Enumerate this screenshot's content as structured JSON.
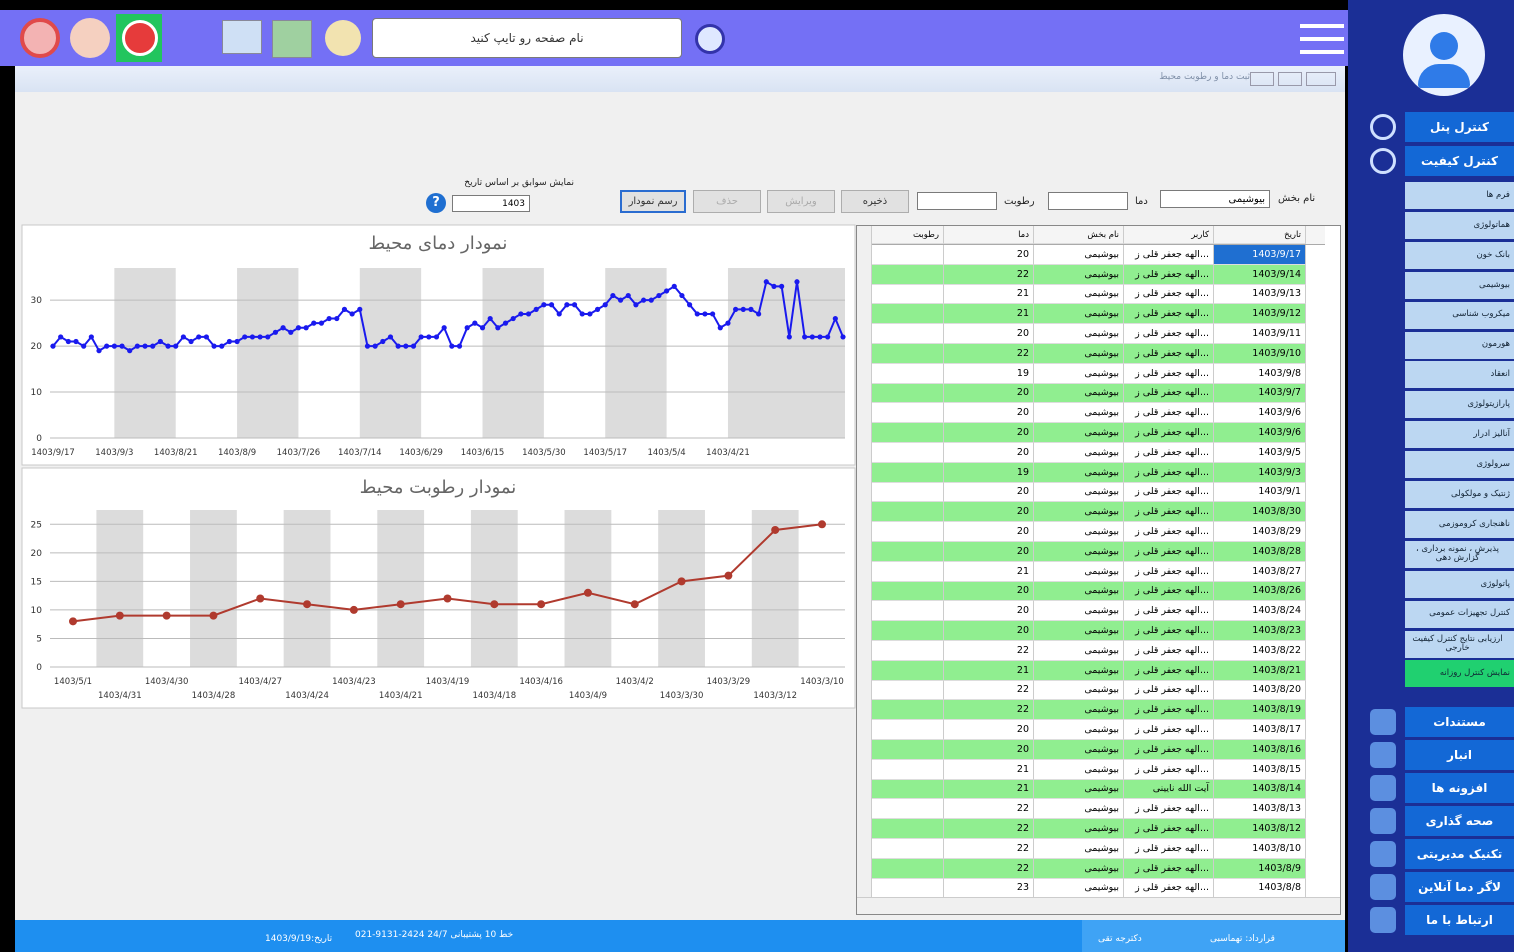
{
  "toolbar": {
    "search_placeholder": "نام صفحه رو تایپ کنید"
  },
  "window": {
    "title": "ثبت دما و رطوبت محیط"
  },
  "form": {
    "section_label": "نام بخش",
    "section_value": "بیوشیمی",
    "temp_label": "دما",
    "humidity_label": "رطوبت",
    "buttons": [
      "ذخیره",
      "ویرایش",
      "حذف",
      "رسم نمودار"
    ],
    "history_label": "نمایش سوابق بر اساس تاریخ",
    "year_value": "1403",
    "help_icon": "?"
  },
  "chart_data": [
    {
      "type": "line",
      "title": "نمودار دمای محیط",
      "color": "#1a1aee",
      "ylim": [
        0,
        37
      ],
      "yticks": [
        0,
        10,
        20,
        30
      ],
      "grid": true,
      "categories": [
        "1403/9/17",
        null,
        null,
        null,
        null,
        null,
        null,
        null,
        "1403/9/3",
        null,
        null,
        null,
        null,
        null,
        null,
        null,
        "1403/8/21",
        null,
        null,
        null,
        null,
        null,
        null,
        null,
        "1403/8/9",
        null,
        null,
        null,
        null,
        null,
        null,
        null,
        "1403/7/26",
        null,
        null,
        null,
        null,
        null,
        null,
        null,
        "1403/7/14",
        null,
        null,
        null,
        null,
        null,
        null,
        null,
        "1403/6/29",
        null,
        null,
        null,
        null,
        null,
        null,
        null,
        "1403/6/15",
        null,
        null,
        null,
        null,
        null,
        null,
        null,
        "1403/5/30",
        null,
        null,
        null,
        null,
        null,
        null,
        null,
        "1403/5/17",
        null,
        null,
        null,
        null,
        null,
        null,
        null,
        "1403/5/4",
        null,
        null,
        null,
        null,
        null,
        null,
        null,
        "1403/4/21",
        null,
        null,
        null,
        null,
        null,
        null,
        null,
        null,
        null,
        null,
        null,
        null,
        null,
        null,
        null
      ],
      "values": [
        20,
        22,
        21,
        21,
        20,
        22,
        19,
        20,
        20,
        20,
        19,
        20,
        20,
        20,
        21,
        20,
        20,
        22,
        21,
        22,
        22,
        20,
        20,
        21,
        21,
        22,
        22,
        22,
        22,
        23,
        24,
        23,
        24,
        24,
        25,
        25,
        26,
        26,
        28,
        27,
        28,
        20,
        20,
        21,
        22,
        20,
        20,
        20,
        22,
        22,
        22,
        24,
        20,
        20,
        24,
        25,
        24,
        26,
        24,
        25,
        26,
        27,
        27,
        28,
        29,
        29,
        27,
        29,
        29,
        27,
        27,
        28,
        29,
        31,
        30,
        31,
        29,
        30,
        30,
        31,
        32,
        33,
        31,
        29,
        27,
        27,
        27,
        24,
        25,
        28,
        28,
        28,
        27,
        34,
        33,
        33,
        22,
        34,
        22,
        22,
        22,
        22,
        26,
        22
      ]
    },
    {
      "type": "line",
      "title": "نمودار رطوبت محیط",
      "color": "#b03a2e",
      "ylim": [
        0,
        27.5
      ],
      "yticks": [
        0,
        5,
        10,
        15,
        20,
        25
      ],
      "grid": true,
      "categories": [
        "1403/5/1",
        "1403/4/31",
        "1403/4/30",
        "1403/4/28",
        "1403/4/27",
        "1403/4/24",
        "1403/4/23",
        "1403/4/21",
        "1403/4/19",
        "1403/4/18",
        "1403/4/16",
        "1403/4/9",
        "1403/4/2",
        "1403/3/30",
        "1403/3/29",
        "1403/3/12",
        "1403/3/10"
      ],
      "values": [
        8,
        9,
        9,
        9,
        12,
        11,
        10,
        11,
        12,
        11,
        11,
        13,
        11,
        15,
        16,
        24,
        25
      ]
    }
  ],
  "table": {
    "columns": [
      "تاریخ",
      "کاربر",
      "نام بخش",
      "دما",
      "رطوبت"
    ],
    "rows": [
      [
        "1403/9/17",
        "الهه جعفر قلی ز...",
        "بیوشیمی",
        20
      ],
      [
        "1403/9/14",
        "الهه جعفر قلی ز...",
        "بیوشیمی",
        22
      ],
      [
        "1403/9/13",
        "الهه جعفر قلی ز...",
        "بیوشیمی",
        21
      ],
      [
        "1403/9/12",
        "الهه جعفر قلی ز...",
        "بیوشیمی",
        21
      ],
      [
        "1403/9/11",
        "الهه جعفر قلی ز...",
        "بیوشیمی",
        20
      ],
      [
        "1403/9/10",
        "الهه جعفر قلی ز...",
        "بیوشیمی",
        22
      ],
      [
        "1403/9/8",
        "الهه جعفر قلی ز...",
        "بیوشیمی",
        19
      ],
      [
        "1403/9/7",
        "الهه جعفر قلی ز...",
        "بیوشیمی",
        20
      ],
      [
        "1403/9/6",
        "الهه جعفر قلی ز...",
        "بیوشیمی",
        20
      ],
      [
        "1403/9/6",
        "الهه جعفر قلی ز...",
        "بیوشیمی",
        20
      ],
      [
        "1403/9/5",
        "الهه جعفر قلی ز...",
        "بیوشیمی",
        20
      ],
      [
        "1403/9/3",
        "الهه جعفر قلی ز...",
        "بیوشیمی",
        19
      ],
      [
        "1403/9/1",
        "الهه جعفر قلی ز...",
        "بیوشیمی",
        20
      ],
      [
        "1403/8/30",
        "الهه جعفر قلی ز...",
        "بیوشیمی",
        20
      ],
      [
        "1403/8/29",
        "الهه جعفر قلی ز...",
        "بیوشیمی",
        20
      ],
      [
        "1403/8/28",
        "الهه جعفر قلی ز...",
        "بیوشیمی",
        20
      ],
      [
        "1403/8/27",
        "الهه جعفر قلی ز...",
        "بیوشیمی",
        21
      ],
      [
        "1403/8/26",
        "الهه جعفر قلی ز...",
        "بیوشیمی",
        20
      ],
      [
        "1403/8/24",
        "الهه جعفر قلی ز...",
        "بیوشیمی",
        20
      ],
      [
        "1403/8/23",
        "الهه جعفر قلی ز...",
        "بیوشیمی",
        20
      ],
      [
        "1403/8/22",
        "الهه جعفر قلی ز...",
        "بیوشیمی",
        22
      ],
      [
        "1403/8/21",
        "الهه جعفر قلی ز...",
        "بیوشیمی",
        21
      ],
      [
        "1403/8/20",
        "الهه جعفر قلی ز...",
        "بیوشیمی",
        22
      ],
      [
        "1403/8/19",
        "الهه جعفر قلی ز...",
        "بیوشیمی",
        22
      ],
      [
        "1403/8/17",
        "الهه جعفر قلی ز...",
        "بیوشیمی",
        20
      ],
      [
        "1403/8/16",
        "الهه جعفر قلی ز...",
        "بیوشیمی",
        20
      ],
      [
        "1403/8/15",
        "الهه جعفر قلی ز...",
        "بیوشیمی",
        21
      ],
      [
        "1403/8/14",
        "آیت الله نایینی",
        "بیوشیمی",
        21
      ],
      [
        "1403/8/13",
        "الهه جعفر قلی ز...",
        "بیوشیمی",
        22
      ],
      [
        "1403/8/12",
        "الهه جعفر قلی ز...",
        "بیوشیمی",
        22
      ],
      [
        "1403/8/10",
        "الهه جعفر قلی ز...",
        "بیوشیمی",
        22
      ],
      [
        "1403/8/9",
        "الهه جعفر قلی ز...",
        "بیوشیمی",
        22
      ],
      [
        "1403/8/8",
        "الهه جعفر قلی ز...",
        "بیوشیمی",
        23
      ]
    ]
  },
  "sidebar": {
    "top": [
      "کنترل پنل",
      "کنترل کیفیت"
    ],
    "submenu": [
      "فرم ها",
      "هماتولوژی",
      "بانک خون",
      "بیوشیمی",
      "میکروب شناسی",
      "هورمون",
      "انعقاد",
      "پارازیتولوژی",
      "آنالیز ادرار",
      "سرولوژی",
      "ژنتیک و مولکولی",
      "ناهنجاری کروموزمی",
      "پذیرش ، نمونه برداری ، گزارش دهی",
      "پاتولوژی",
      "کنترل تجهیزات عمومی",
      "ارزیابی نتایج کنترل کیفیت خارجی",
      "نمایش کنترل روزانه"
    ],
    "bottom": [
      "مستندات",
      "انبار",
      "افزونه ها",
      "صحه گذاری",
      "تکنیک مدیریتی",
      "لاگر دما آنلاین",
      "ارتباط با ما"
    ]
  },
  "status": {
    "date": "تاریخ:1403/9/19",
    "support": "021-9131-2424 خط 10 پشتیبانی 24/7",
    "user": "دکترجه تقی",
    "contract": "قرارداد: تهماسبی"
  }
}
